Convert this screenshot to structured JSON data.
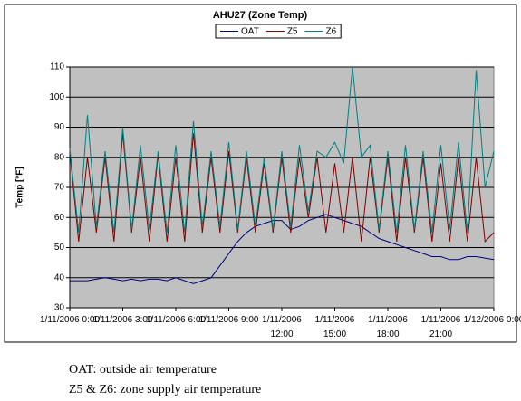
{
  "chart_data": {
    "type": "line",
    "title": "AHU27 (Zone Temp)",
    "y_label": "Temp [°F]",
    "x": [
      "1/11/2006 0:00",
      "1/11/2006 0:30",
      "1/11/2006 1:00",
      "1/11/2006 1:30",
      "1/11/2006 2:00",
      "1/11/2006 2:30",
      "1/11/2006 3:00",
      "1/11/2006 3:30",
      "1/11/2006 4:00",
      "1/11/2006 4:30",
      "1/11/2006 5:00",
      "1/11/2006 5:30",
      "1/11/2006 6:00",
      "1/11/2006 6:30",
      "1/11/2006 7:00",
      "1/11/2006 7:30",
      "1/11/2006 8:00",
      "1/11/2006 8:30",
      "1/11/2006 9:00",
      "1/11/2006 9:30",
      "1/11/2006 10:00",
      "1/11/2006 10:30",
      "1/11/2006 11:00",
      "1/11/2006 11:30",
      "1/11/2006 12:00",
      "1/11/2006 12:30",
      "1/11/2006 13:00",
      "1/11/2006 13:30",
      "1/11/2006 14:00",
      "1/11/2006 14:30",
      "1/11/2006 15:00",
      "1/11/2006 15:30",
      "1/11/2006 16:00",
      "1/11/2006 16:30",
      "1/11/2006 17:00",
      "1/11/2006 17:30",
      "1/11/2006 18:00",
      "1/11/2006 18:30",
      "1/11/2006 19:00",
      "1/11/2006 19:30",
      "1/11/2006 20:00",
      "1/11/2006 20:30",
      "1/11/2006 21:00",
      "1/11/2006 21:30",
      "1/11/2006 22:00",
      "1/11/2006 22:30",
      "1/11/2006 23:00",
      "1/11/2006 23:30",
      "1/12/2006 0:00"
    ],
    "series": [
      {
        "name": "OAT",
        "color": "#000080",
        "values": [
          39,
          39,
          39,
          39.5,
          40,
          39.5,
          39,
          39.5,
          39,
          39.5,
          39.5,
          39,
          40,
          39,
          38,
          39,
          40,
          44,
          48,
          52,
          55,
          57,
          58,
          59,
          59,
          56,
          57,
          59,
          60,
          61,
          60,
          59,
          58,
          57,
          55,
          53,
          52,
          51,
          50,
          49,
          48,
          47,
          47,
          46,
          46,
          47,
          47,
          46.5,
          46
        ]
      },
      {
        "name": "Z5",
        "color": "#800000",
        "values": [
          82,
          52,
          80,
          55,
          80,
          52,
          88,
          55,
          80,
          52,
          81,
          52,
          80,
          52,
          88,
          55,
          80,
          55,
          82,
          55,
          80,
          55,
          78,
          55,
          80,
          55,
          80,
          60,
          80,
          55,
          78,
          55,
          80,
          52,
          80,
          55,
          80,
          52,
          80,
          55,
          80,
          52,
          78,
          52,
          80,
          52,
          80,
          52,
          55
        ]
      },
      {
        "name": "Z6",
        "color": "#008080",
        "values": [
          83,
          55,
          94,
          57,
          82,
          55,
          90,
          56,
          84,
          56,
          82,
          55,
          84,
          55,
          92,
          57,
          82,
          57,
          85,
          56,
          82,
          57,
          80,
          56,
          82,
          57,
          84,
          62,
          82,
          80,
          85,
          78,
          110,
          80,
          84,
          56,
          82,
          55,
          84,
          56,
          82,
          55,
          84,
          56,
          85,
          55,
          109,
          70,
          82
        ]
      }
    ],
    "xlim": [
      "1/11/2006 0:00",
      "1/12/2006 0:00"
    ],
    "xticks": [
      "1/11/2006 0:00",
      "1/11/2006 3:00",
      "1/11/2006 6:00",
      "1/11/2006 9:00",
      "1/11/2006 12:00",
      "1/11/2006 15:00",
      "1/11/2006 18:00",
      "1/11/2006 21:00",
      "1/12/2006 0:00"
    ],
    "ylim": [
      30,
      110
    ],
    "yticks": [
      30,
      40,
      50,
      60,
      70,
      80,
      90,
      100,
      110
    ],
    "grid": true,
    "legend": "top",
    "annotations": [
      "OAT: outside air temperature",
      "Z5 & Z6: zone supply air temperature"
    ]
  }
}
